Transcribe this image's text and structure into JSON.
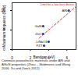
{
  "chart_data": {
    "type": "scatter",
    "caption": "Common piezoelectric materials under AlN and AlScN properties (Zhou – Skidmorex and Wang 2006; Xu and Zwick 2012)",
    "x_label": "Bandgap (eV)",
    "y_label": "Maximum frequency (GHz)",
    "xlim": [
      0,
      7
    ],
    "xticks": [
      0,
      2,
      4,
      6
    ],
    "ylim": [
      0,
      12
    ],
    "yticks": [
      0,
      5,
      10
    ],
    "grid": false,
    "series": [
      {
        "type": "scatter",
        "color": "#1f3f8f",
        "marker": "circle",
        "x": [
          3.5,
          4.0,
          3.4,
          3.4,
          6.2
        ],
        "values": [
          1,
          2,
          4,
          6,
          10
        ],
        "point_labels": [
          "PZT",
          "LiNbO3",
          "ZnO",
          "GaN",
          "AlN"
        ]
      },
      {
        "type": "line",
        "color": "#d62728",
        "line_style": "dashed",
        "x": [
          3,
          7
        ],
        "values": [
          3,
          11
        ]
      }
    ],
    "annotations": [
      {
        "text": "Limit for a low-loss device",
        "x": 6.8,
        "y": 11.6
      }
    ]
  }
}
